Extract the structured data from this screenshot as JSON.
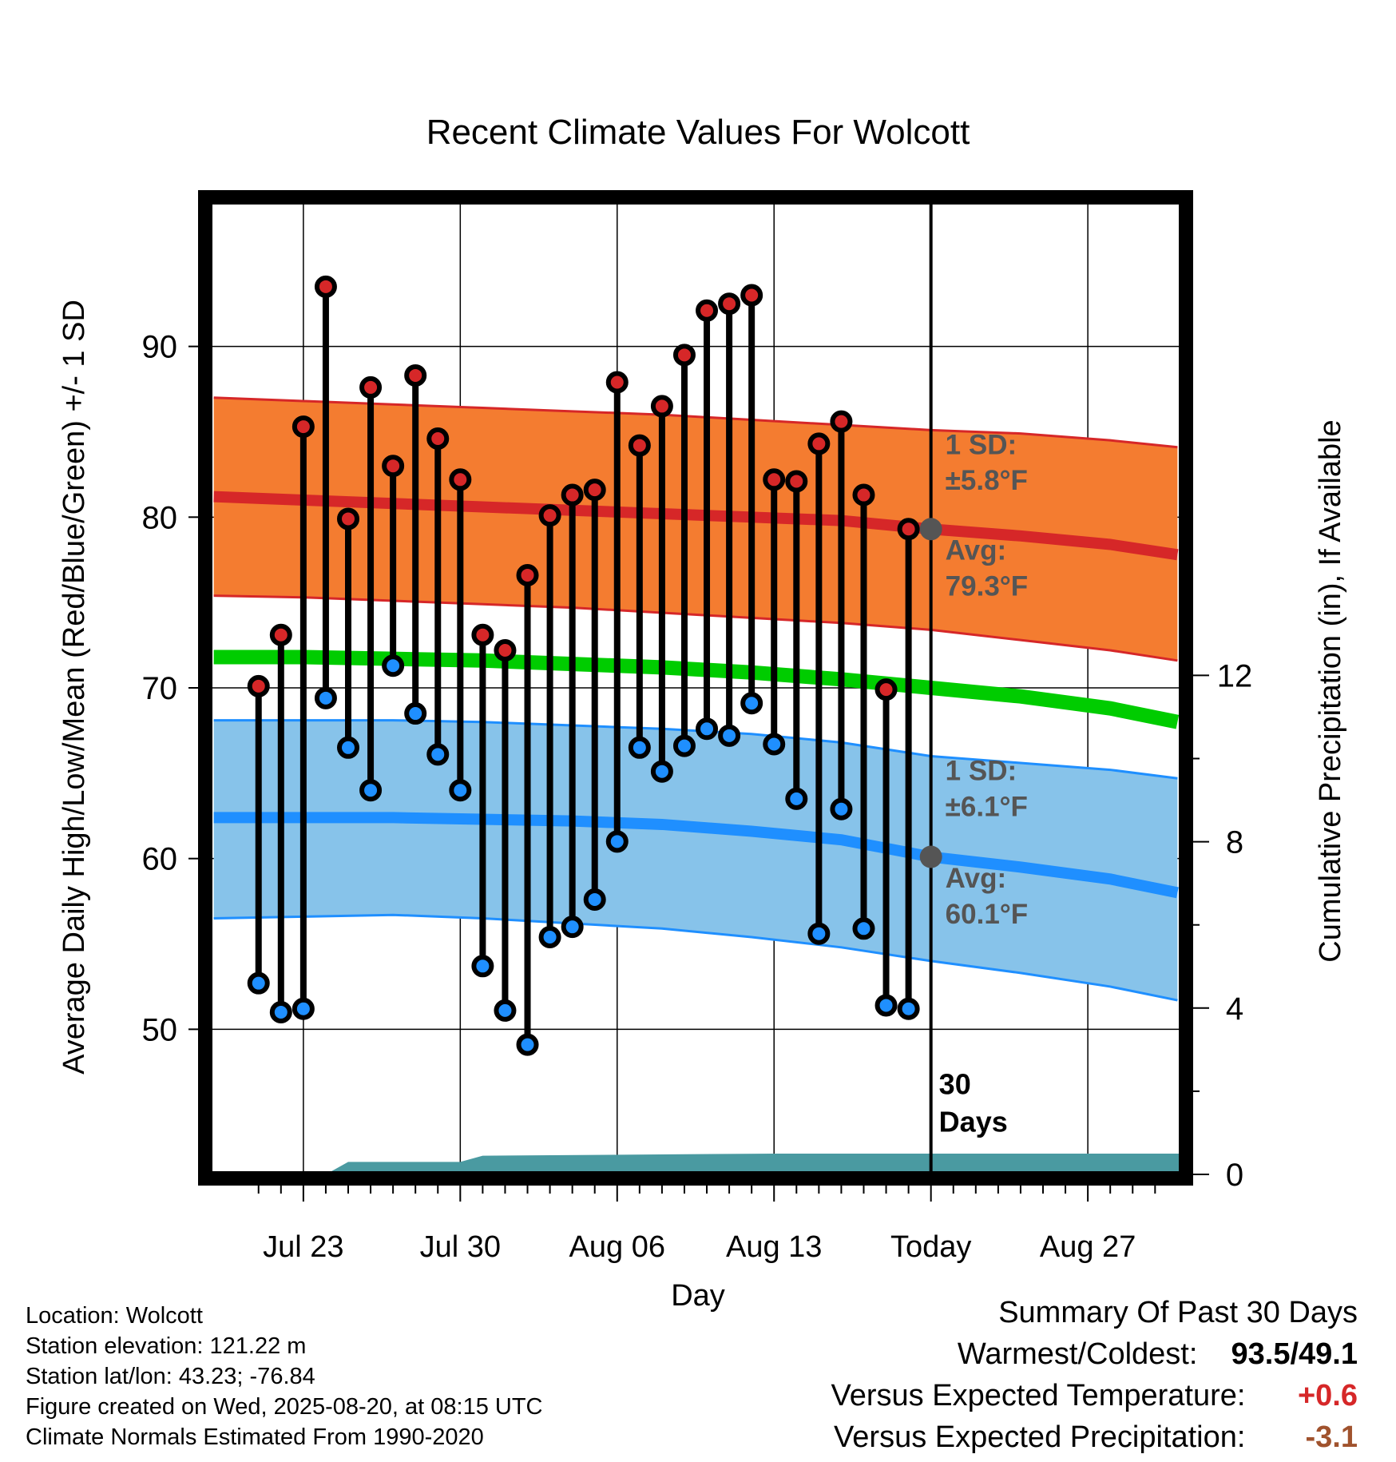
{
  "chart_data": {
    "type": "line",
    "title": "Recent Climate Values For Wolcott",
    "xlabel": "Day",
    "ylabel": "Average Daily High/Low/Mean (Red/Blue/Green) +/- 1 SD",
    "y2label": "Cumulative Precipitation (in), If Available",
    "x_day_range": [
      -32.2,
      11.2
    ],
    "ylim": [
      41.5,
      98.5
    ],
    "y_ticks": [
      50,
      60,
      70,
      80,
      90
    ],
    "y2lim": [
      0,
      23.4
    ],
    "y2_ticks": [
      0,
      4,
      8,
      12
    ],
    "x_ticks": [
      {
        "day": -28,
        "label": "Jul 23"
      },
      {
        "day": -21,
        "label": "Jul 30"
      },
      {
        "day": -14,
        "label": "Aug 06"
      },
      {
        "day": -7,
        "label": "Aug 13"
      },
      {
        "day": 0,
        "label": "Today"
      },
      {
        "day": 7,
        "label": "Aug 27"
      }
    ],
    "grid": true,
    "days": [
      -30,
      -29,
      -28,
      -27,
      -26,
      -25,
      -24,
      -23,
      -22,
      -21,
      -20,
      -19,
      -18,
      -17,
      -16,
      -15,
      -14,
      -13,
      -12,
      -11,
      -10,
      -9,
      -8,
      -7,
      -6,
      -5,
      -4,
      -3,
      -2,
      -1
    ],
    "series": [
      {
        "name": "High",
        "color": "#d62728",
        "values": [
          70.1,
          73.1,
          85.3,
          93.5,
          79.9,
          87.6,
          83.0,
          88.3,
          84.6,
          82.2,
          73.1,
          72.2,
          76.6,
          80.1,
          81.3,
          81.6,
          87.9,
          84.2,
          86.5,
          89.5,
          92.1,
          92.5,
          93.0,
          82.2,
          82.1,
          84.3,
          85.6,
          81.3,
          69.9,
          79.3
        ]
      },
      {
        "name": "Low",
        "color": "#1f8fff",
        "values": [
          52.7,
          51.0,
          51.2,
          69.4,
          66.5,
          64.0,
          71.3,
          68.5,
          66.1,
          64.0,
          53.7,
          51.1,
          49.1,
          55.4,
          56.0,
          57.6,
          61.0,
          66.5,
          65.1,
          66.6,
          67.6,
          67.2,
          69.1,
          66.7,
          63.5,
          55.6,
          62.9,
          55.9,
          51.4,
          51.2
        ]
      }
    ],
    "normals": {
      "normal_days": [
        -32,
        -28,
        -24,
        -20,
        -16,
        -12,
        -8,
        -4,
        0,
        4,
        8,
        11
      ],
      "high": [
        81.2,
        81.0,
        80.8,
        80.6,
        80.4,
        80.2,
        80.0,
        79.8,
        79.3,
        78.9,
        78.4,
        77.8
      ],
      "high_upper": [
        87.0,
        86.8,
        86.6,
        86.4,
        86.2,
        86.0,
        85.7,
        85.4,
        85.1,
        84.9,
        84.5,
        84.1
      ],
      "high_lower": [
        75.4,
        75.3,
        75.1,
        74.9,
        74.7,
        74.4,
        74.1,
        73.8,
        73.4,
        72.8,
        72.2,
        71.6
      ],
      "mean": [
        71.8,
        71.8,
        71.7,
        71.6,
        71.4,
        71.2,
        70.9,
        70.5,
        70.0,
        69.5,
        68.8,
        68.0
      ],
      "low": [
        62.4,
        62.4,
        62.4,
        62.3,
        62.2,
        62.0,
        61.6,
        61.1,
        60.1,
        59.5,
        58.8,
        58.0
      ],
      "low_upper": [
        68.1,
        68.1,
        68.1,
        68.0,
        67.8,
        67.6,
        67.3,
        66.8,
        66.0,
        65.6,
        65.2,
        64.7
      ],
      "low_lower": [
        56.5,
        56.6,
        56.7,
        56.5,
        56.2,
        55.9,
        55.4,
        54.8,
        54.0,
        53.3,
        52.5,
        51.7
      ],
      "colors": {
        "high_band": "#f47c30",
        "high_line": "#d62728",
        "mean_line": "#00cc00",
        "low_band": "#87c3ea",
        "low_line": "#1f8fff",
        "marker": "#555555"
      }
    },
    "precip": {
      "days": [
        -32,
        -27,
        -26,
        -21,
        -20,
        -7,
        11.2
      ],
      "cumulative": [
        0.0,
        0.0,
        0.3,
        0.3,
        0.45,
        0.5,
        0.5
      ],
      "color": "#4a9aa1"
    },
    "annotations": {
      "high_sd_line1": "1 SD:",
      "high_sd_line2": "±5.8°F",
      "high_avg_line1": "Avg:",
      "high_avg_line2": "79.3°F",
      "low_sd_line1": "1 SD:",
      "low_sd_line2": "±6.1°F",
      "low_avg_line1": "Avg:",
      "low_avg_line2": "60.1°F",
      "today_line1": "30",
      "today_line2": "Days",
      "color": "#555555"
    }
  },
  "location": {
    "line1": "Location: Wolcott",
    "line2": "Station elevation: 121.22 m",
    "line3": "Station lat/lon: 43.23; -76.84",
    "line4": "Figure created on Wed, 2025-08-20, at 08:15 UTC",
    "line5": "Climate Normals Estimated From 1990-2020"
  },
  "summary": {
    "title": "Summary Of Past 30 Days",
    "warmest_label": "Warmest/Coldest:",
    "warmest_value": "93.5/49.1",
    "temp_label": "Versus Expected Temperature:",
    "temp_value": "+0.6",
    "temp_color": "#d62728",
    "precip_label": "Versus Expected Precipitation:",
    "precip_value": "-3.1",
    "precip_color": "#a0522d"
  }
}
